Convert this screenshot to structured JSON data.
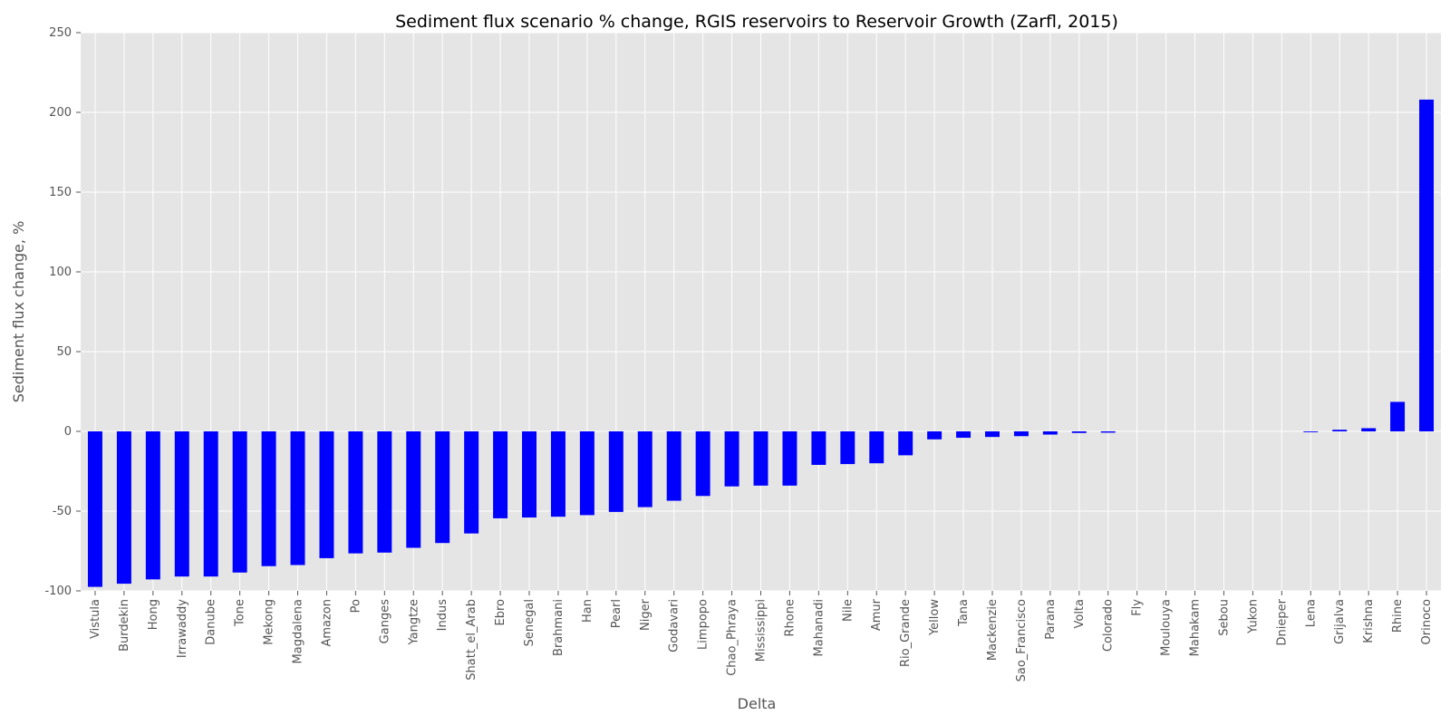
{
  "chart_data": {
    "type": "bar",
    "title": "Sediment flux scenario % change, RGIS reservoirs to Reservoir Growth (Zarfl, 2015)",
    "xlabel": "Delta",
    "ylabel": "Sediment flux change, %",
    "ylim": [
      -100,
      250
    ],
    "yticks": [
      -100,
      -50,
      0,
      50,
      100,
      150,
      200,
      250
    ],
    "grid": true,
    "bar_color": "#0000ff",
    "background_color": "#e5e5e5",
    "categories": [
      "Vistula",
      "Burdekin",
      "Hong",
      "Irrawaddy",
      "Danube",
      "Tone",
      "Mekong",
      "Magdalena",
      "Amazon",
      "Po",
      "Ganges",
      "Yangtze",
      "Indus",
      "Shatt_el_Arab",
      "Ebro",
      "Senegal",
      "Brahmani",
      "Han",
      "Pearl",
      "Niger",
      "Godavari",
      "Limpopo",
      "Chao_Phraya",
      "Mississippi",
      "Rhone",
      "Mahanadi",
      "Nile",
      "Amur",
      "Rio_Grande",
      "Yellow",
      "Tana",
      "Mackenzie",
      "Sao_Francisco",
      "Parana",
      "Volta",
      "Colorado",
      "Fly",
      "Moulouya",
      "Mahakam",
      "Sebou",
      "Yukon",
      "Dnieper",
      "Lena",
      "Grijalva",
      "Krishna",
      "Rhine",
      "Orinoco"
    ],
    "values": [
      -97.5,
      -95.5,
      -92.8,
      -91.0,
      -91.0,
      -88.5,
      -84.5,
      -83.8,
      -79.5,
      -76.5,
      -76.0,
      -73.0,
      -70.0,
      -64.0,
      -54.5,
      -54.0,
      -53.5,
      -52.5,
      -50.5,
      -47.5,
      -43.5,
      -40.5,
      -34.5,
      -34.0,
      -34.0,
      -21.0,
      -20.5,
      -20.0,
      -15.0,
      -5.0,
      -4.0,
      -3.5,
      -3.0,
      -2.0,
      -1.0,
      -0.8,
      0.0,
      0.0,
      0.0,
      0.0,
      0.0,
      0.0,
      -0.5,
      1.0,
      2.0,
      18.5,
      208.0
    ]
  }
}
